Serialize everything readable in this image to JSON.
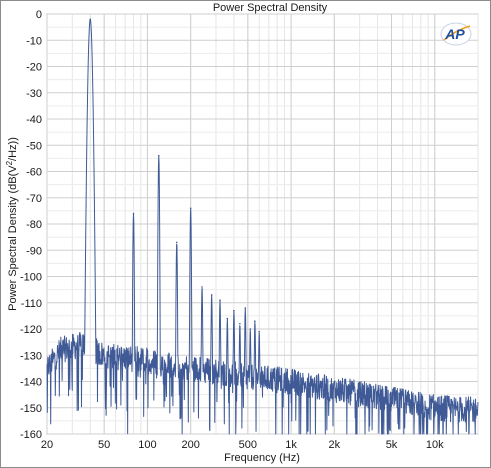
{
  "chart_data": {
    "type": "line",
    "title": "Power Spectral Density",
    "xlabel": "Frequency (Hz)",
    "ylabel_main": "Power Spectral Density (dB(V",
    "ylabel_sup": "2",
    "ylabel_tail": "/Hz))",
    "x_scale": "log",
    "xlim": [
      20,
      20000
    ],
    "ylim": [
      -160,
      0
    ],
    "x_ticks": [
      {
        "value": 20,
        "label": "20"
      },
      {
        "value": 50,
        "label": "50"
      },
      {
        "value": 100,
        "label": "100"
      },
      {
        "value": 200,
        "label": "200"
      },
      {
        "value": 500,
        "label": "500"
      },
      {
        "value": 1000,
        "label": "1k"
      },
      {
        "value": 2000,
        "label": "2k"
      },
      {
        "value": 5000,
        "label": "5k"
      },
      {
        "value": 10000,
        "label": "10k"
      }
    ],
    "y_ticks": [
      0,
      -10,
      -20,
      -30,
      -40,
      -50,
      -60,
      -70,
      -80,
      -90,
      -100,
      -110,
      -120,
      -130,
      -140,
      -150,
      -160
    ],
    "grid": true,
    "line_color": "#3f5a96",
    "peaks": [
      {
        "x": 40,
        "y": -2
      },
      {
        "x": 80,
        "y": -76
      },
      {
        "x": 120,
        "y": -54
      },
      {
        "x": 160,
        "y": -87
      },
      {
        "x": 200,
        "y": -74
      },
      {
        "x": 240,
        "y": -104
      },
      {
        "x": 280,
        "y": -107
      },
      {
        "x": 320,
        "y": -109
      },
      {
        "x": 360,
        "y": -116
      },
      {
        "x": 400,
        "y": -113
      },
      {
        "x": 440,
        "y": -118
      },
      {
        "x": 480,
        "y": -112
      },
      {
        "x": 520,
        "y": -120
      },
      {
        "x": 560,
        "y": -117
      },
      {
        "x": 600,
        "y": -121
      }
    ],
    "noise_floor": [
      {
        "x": 20,
        "y": -135
      },
      {
        "x": 25,
        "y": -128
      },
      {
        "x": 35,
        "y": -126
      },
      {
        "x": 50,
        "y": -130
      },
      {
        "x": 100,
        "y": -132
      },
      {
        "x": 200,
        "y": -135
      },
      {
        "x": 500,
        "y": -138
      },
      {
        "x": 1000,
        "y": -140
      },
      {
        "x": 2000,
        "y": -143
      },
      {
        "x": 5000,
        "y": -147
      },
      {
        "x": 10000,
        "y": -150
      },
      {
        "x": 20000,
        "y": -151
      }
    ]
  },
  "logo": {
    "text": "AP"
  }
}
